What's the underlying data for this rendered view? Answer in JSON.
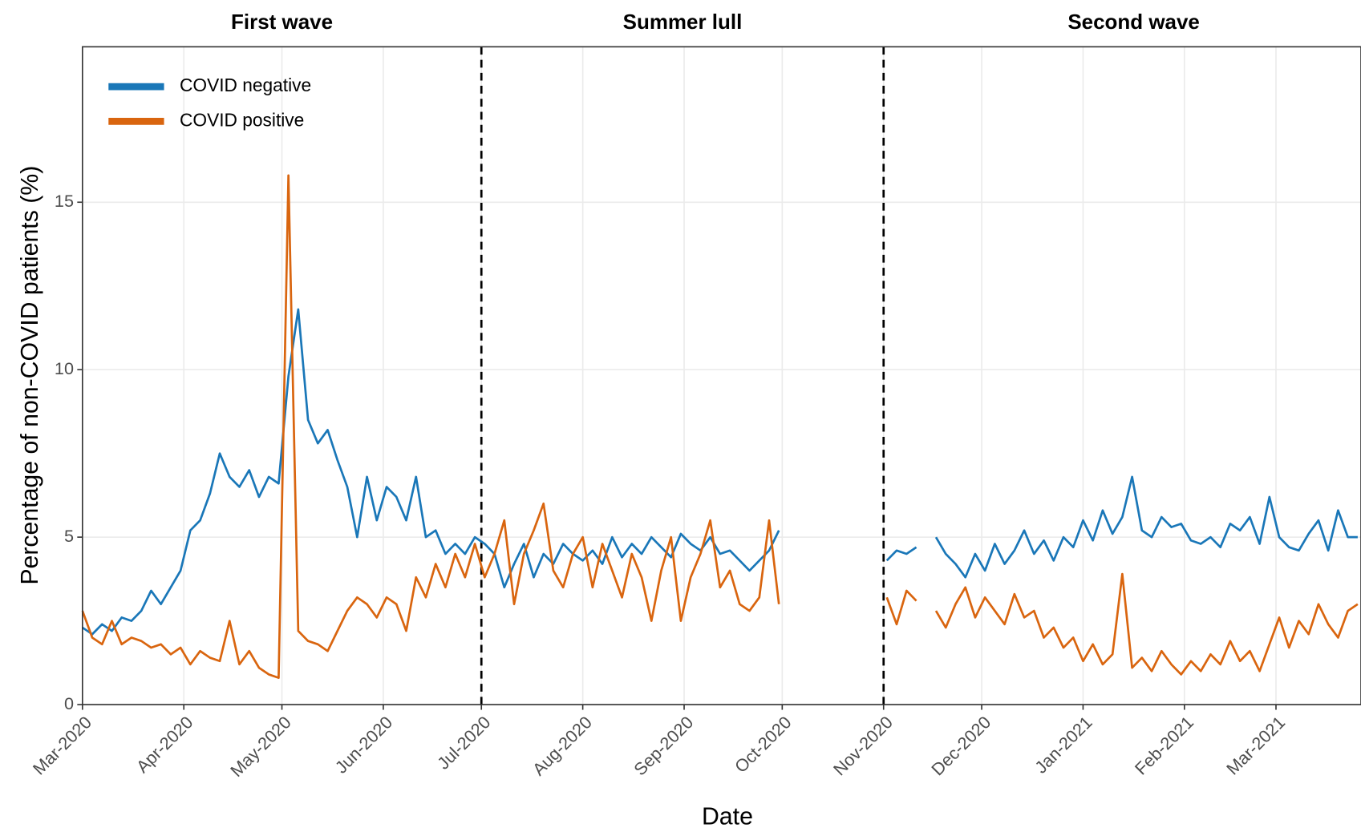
{
  "chart_data": {
    "type": "line",
    "xlabel": "Date",
    "ylabel": "Percentage of non-COVID patients (%)",
    "phases": [
      {
        "label": "First wave",
        "start": 0,
        "end": 122
      },
      {
        "label": "Summer lull",
        "start": 122,
        "end": 245
      },
      {
        "label": "Second wave",
        "start": 245,
        "end": 398
      }
    ],
    "xlim": [
      0,
      391
    ],
    "ylim": [
      0,
      19.64
    ],
    "xticks": [
      {
        "value": 0,
        "label": "Mar-2020"
      },
      {
        "value": 31,
        "label": "Apr-2020"
      },
      {
        "value": 61,
        "label": "May-2020"
      },
      {
        "value": 92,
        "label": "Jun-2020"
      },
      {
        "value": 122,
        "label": "Jul-2020"
      },
      {
        "value": 153,
        "label": "Aug-2020"
      },
      {
        "value": 184,
        "label": "Sep-2020"
      },
      {
        "value": 214,
        "label": "Oct-2020"
      },
      {
        "value": 245,
        "label": "Nov-2020"
      },
      {
        "value": 275,
        "label": "Dec-2020"
      },
      {
        "value": 306,
        "label": "Jan-2021"
      },
      {
        "value": 337,
        "label": "Feb-2021"
      },
      {
        "value": 365,
        "label": "Mar-2021"
      }
    ],
    "yticks": [
      0,
      5,
      10,
      15
    ],
    "grid": true,
    "legend": "top-left",
    "x": [
      0,
      3,
      6,
      9,
      12,
      15,
      18,
      21,
      24,
      27,
      30,
      33,
      36,
      39,
      42,
      45,
      48,
      51,
      54,
      57,
      60,
      63,
      66,
      69,
      72,
      75,
      78,
      81,
      84,
      87,
      90,
      93,
      96,
      99,
      102,
      105,
      108,
      111,
      114,
      117,
      120,
      123,
      126,
      129,
      132,
      135,
      138,
      141,
      144,
      147,
      150,
      153,
      156,
      159,
      162,
      165,
      168,
      171,
      174,
      177,
      180,
      183,
      186,
      189,
      192,
      195,
      198,
      201,
      204,
      207,
      210,
      213,
      230,
      246,
      249,
      252,
      255,
      258,
      261,
      264,
      267,
      270,
      273,
      276,
      279,
      282,
      285,
      288,
      291,
      294,
      297,
      300,
      303,
      306,
      309,
      312,
      315,
      318,
      321,
      324,
      327,
      330,
      333,
      336,
      339,
      342,
      345,
      348,
      351,
      354,
      357,
      360,
      363,
      366,
      369,
      372,
      375,
      378,
      381,
      384,
      387,
      390
    ],
    "series": [
      {
        "name": "COVID negative",
        "color": "#1a77b8",
        "values": [
          2.3,
          2.1,
          2.4,
          2.2,
          2.6,
          2.5,
          2.8,
          3.4,
          3.0,
          3.5,
          4.0,
          5.2,
          5.5,
          6.3,
          7.5,
          6.8,
          6.5,
          7.0,
          6.2,
          6.8,
          6.6,
          9.8,
          11.8,
          8.5,
          7.8,
          8.2,
          7.3,
          6.5,
          5.0,
          6.8,
          5.5,
          6.5,
          6.2,
          5.5,
          6.8,
          5.0,
          5.2,
          4.5,
          4.8,
          4.5,
          5.0,
          4.8,
          4.5,
          3.5,
          4.2,
          4.8,
          3.8,
          4.5,
          4.2,
          4.8,
          4.5,
          4.3,
          4.6,
          4.2,
          5.0,
          4.4,
          4.8,
          4.5,
          5.0,
          4.7,
          4.4,
          5.1,
          4.8,
          4.6,
          5.0,
          4.5,
          4.6,
          4.3,
          4.0,
          4.3,
          4.6,
          5.2,
          null,
          4.3,
          4.6,
          4.5,
          4.7,
          null,
          5.0,
          4.5,
          4.2,
          3.8,
          4.5,
          4.0,
          4.8,
          4.2,
          4.6,
          5.2,
          4.5,
          4.9,
          4.3,
          5.0,
          4.7,
          5.5,
          4.9,
          5.8,
          5.1,
          5.6,
          6.8,
          5.2,
          5.0,
          5.6,
          5.3,
          5.4,
          4.9,
          4.8,
          5.0,
          4.7,
          5.4,
          5.2,
          5.6,
          4.8,
          6.2,
          5.0,
          4.7,
          4.6,
          5.1,
          5.5,
          4.6,
          5.8,
          5.0,
          5.0
        ]
      },
      {
        "name": "COVID positive",
        "color": "#d9650f",
        "values": [
          2.8,
          2.0,
          1.8,
          2.5,
          1.8,
          2.0,
          1.9,
          1.7,
          1.8,
          1.5,
          1.7,
          1.2,
          1.6,
          1.4,
          1.3,
          2.5,
          1.2,
          1.6,
          1.1,
          0.9,
          0.8,
          15.8,
          2.2,
          1.9,
          1.8,
          1.6,
          2.2,
          2.8,
          3.2,
          3.0,
          2.6,
          3.2,
          3.0,
          2.2,
          3.8,
          3.2,
          4.2,
          3.5,
          4.5,
          3.8,
          4.8,
          3.8,
          4.5,
          5.5,
          3.0,
          4.5,
          5.2,
          6.0,
          4.0,
          3.5,
          4.5,
          5.0,
          3.5,
          4.8,
          4.0,
          3.2,
          4.5,
          3.8,
          2.5,
          4.0,
          5.0,
          2.5,
          3.8,
          4.5,
          5.5,
          3.5,
          4.0,
          3.0,
          2.8,
          3.2,
          5.5,
          3.0,
          null,
          3.2,
          2.4,
          3.4,
          3.1,
          null,
          2.8,
          2.3,
          3.0,
          3.5,
          2.6,
          3.2,
          2.8,
          2.4,
          3.3,
          2.6,
          2.8,
          2.0,
          2.3,
          1.7,
          2.0,
          1.3,
          1.8,
          1.2,
          1.5,
          3.9,
          1.1,
          1.4,
          1.0,
          1.6,
          1.2,
          0.9,
          1.3,
          1.0,
          1.5,
          1.2,
          1.9,
          1.3,
          1.6,
          1.0,
          1.8,
          2.6,
          1.7,
          2.5,
          2.1,
          3.0,
          2.4,
          2.0,
          2.8,
          3.0
        ]
      }
    ]
  }
}
